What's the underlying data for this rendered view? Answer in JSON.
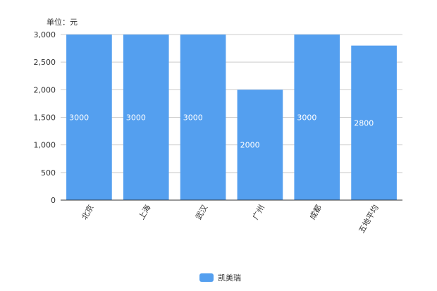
{
  "chart_data": {
    "type": "bar",
    "unit_label": "单位：元",
    "categories": [
      "北京",
      "上海",
      "武汉",
      "广州",
      "成都",
      "五地平均"
    ],
    "series": [
      {
        "name": "凯美瑞",
        "values": [
          3000,
          3000,
          3000,
          2000,
          3000,
          2800
        ]
      }
    ],
    "yticks": [
      "0",
      "500",
      "1,000",
      "1,500",
      "2,000",
      "2,500",
      "3,000"
    ],
    "ylim": [
      0,
      3000
    ],
    "grid": true,
    "legend_position": "bottom-center",
    "colors": {
      "bar": "#549FEF",
      "grid": "#cccccc",
      "axis": "#333333"
    }
  }
}
